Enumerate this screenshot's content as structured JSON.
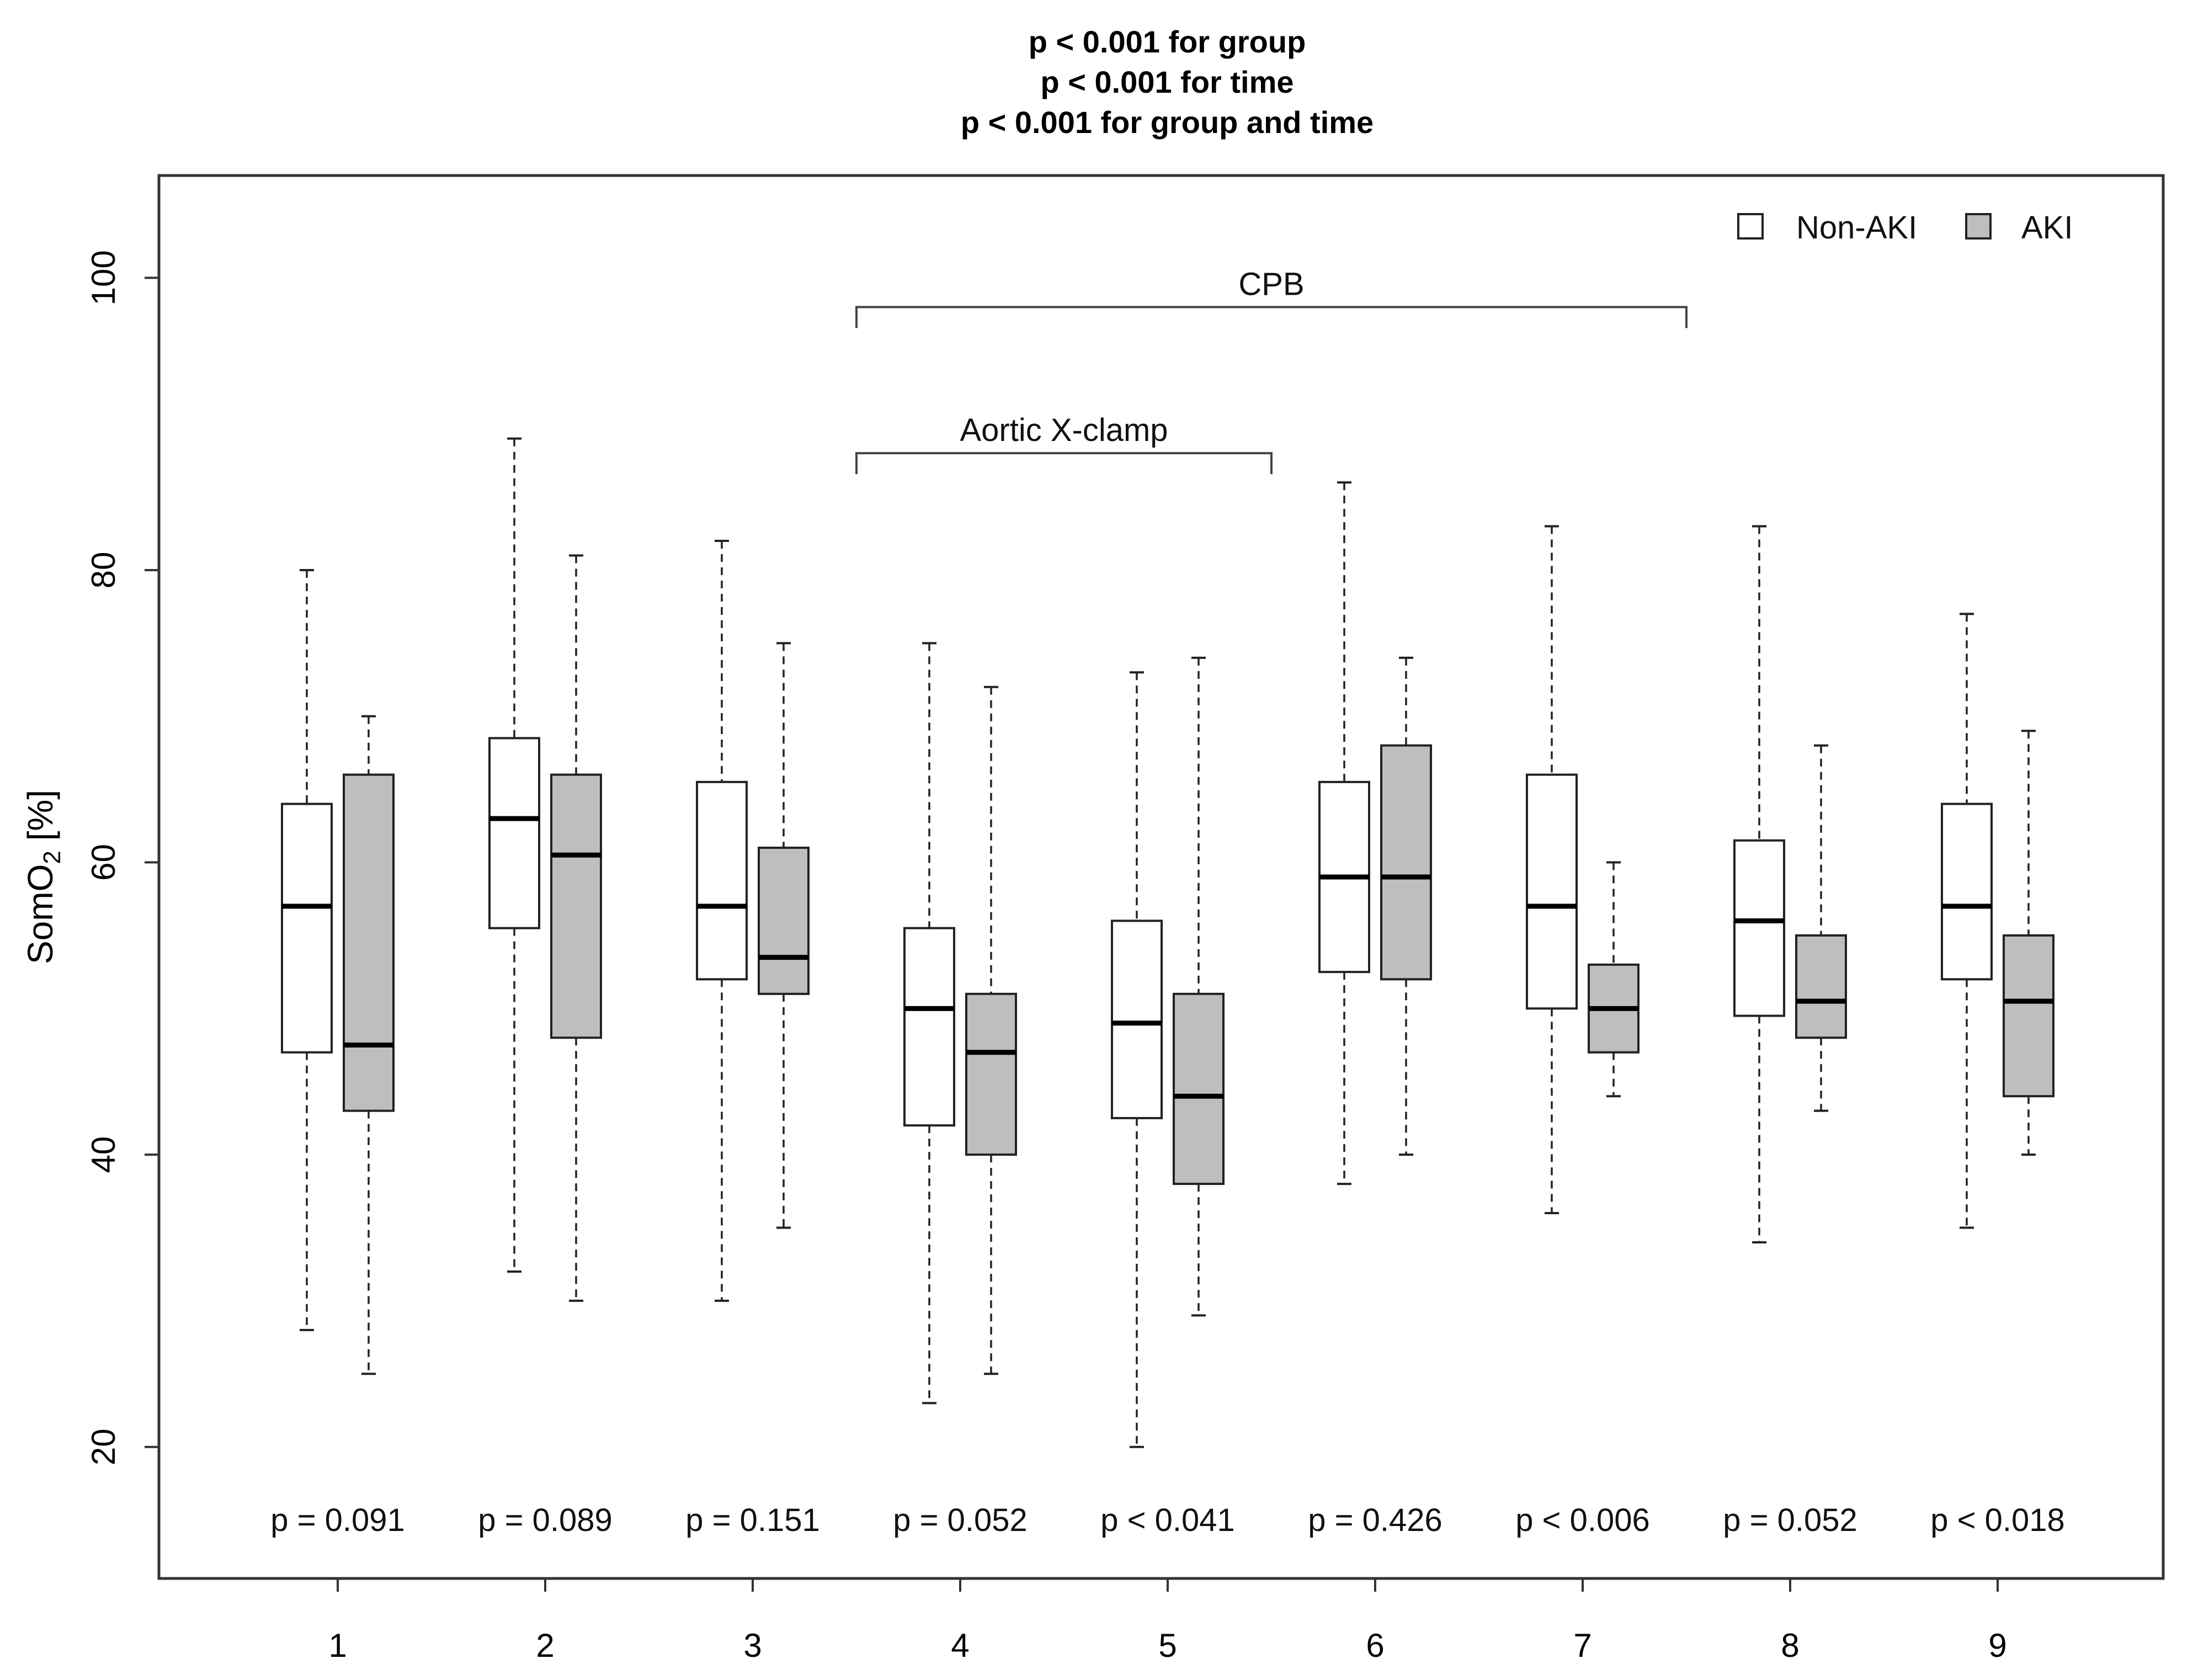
{
  "chart_data": {
    "type": "boxplot",
    "title_lines": [
      "p < 0.001 for group",
      "p < 0.001 for time",
      "p < 0.001 for group and time"
    ],
    "ylabel": "SomO",
    "ylabel_sub": "2",
    "ylabel_unit": " [%]",
    "ylim": [
      11,
      107
    ],
    "yticks": [
      20,
      40,
      60,
      80,
      100
    ],
    "categories": [
      "1",
      "2",
      "3",
      "4",
      "5",
      "6",
      "7",
      "8",
      "9"
    ],
    "legend": [
      {
        "name": "Non-AKI",
        "fill": "#ffffff"
      },
      {
        "name": "AKI",
        "fill": "#bebebe"
      }
    ],
    "series": [
      {
        "name": "Non-AKI",
        "fill": "#ffffff",
        "boxes": [
          {
            "min": 28,
            "q1": 47,
            "median": 57,
            "q3": 64,
            "max": 80
          },
          {
            "min": 32,
            "q1": 55.5,
            "median": 63,
            "q3": 68.5,
            "max": 89
          },
          {
            "min": 30,
            "q1": 52,
            "median": 57,
            "q3": 65.5,
            "max": 82
          },
          {
            "min": 23,
            "q1": 42,
            "median": 50,
            "q3": 55.5,
            "max": 75
          },
          {
            "min": 20,
            "q1": 42.5,
            "median": 49,
            "q3": 56,
            "max": 73
          },
          {
            "min": 38,
            "q1": 52.5,
            "median": 59,
            "q3": 65.5,
            "max": 86
          },
          {
            "min": 36,
            "q1": 50,
            "median": 57,
            "q3": 66,
            "max": 83
          },
          {
            "min": 34,
            "q1": 49.5,
            "median": 56,
            "q3": 61.5,
            "max": 83
          },
          {
            "min": 35,
            "q1": 52,
            "median": 57,
            "q3": 64,
            "max": 77
          }
        ]
      },
      {
        "name": "AKI",
        "fill": "#bebebe",
        "boxes": [
          {
            "min": 25,
            "q1": 43,
            "median": 47.5,
            "q3": 66,
            "max": 70
          },
          {
            "min": 30,
            "q1": 48,
            "median": 60.5,
            "q3": 66,
            "max": 81
          },
          {
            "min": 35,
            "q1": 51,
            "median": 53.5,
            "q3": 61,
            "max": 75
          },
          {
            "min": 25,
            "q1": 40,
            "median": 47,
            "q3": 51,
            "max": 72
          },
          {
            "min": 29,
            "q1": 38,
            "median": 44,
            "q3": 51,
            "max": 74
          },
          {
            "min": 40,
            "q1": 52,
            "median": 59,
            "q3": 68,
            "max": 74
          },
          {
            "min": 44,
            "q1": 47,
            "median": 50,
            "q3": 53,
            "max": 60
          },
          {
            "min": 43,
            "q1": 48,
            "median": 50.5,
            "q3": 55,
            "max": 68
          },
          {
            "min": 40,
            "q1": 44,
            "median": 50.5,
            "q3": 55,
            "max": 69
          }
        ]
      }
    ],
    "pvalues": [
      "p = 0.091",
      "p = 0.089",
      "p = 0.151",
      "p = 0.052",
      "p < 0.041",
      "p = 0.426",
      "p < 0.006",
      "p = 0.052",
      "p < 0.018"
    ],
    "pvalue_y": 15,
    "annotations": [
      {
        "label": "CPB",
        "from": 3.5,
        "to": 7.5,
        "y": 98
      },
      {
        "label": "Aortic X-clamp",
        "from": 3.5,
        "to": 5.5,
        "y": 88
      }
    ]
  }
}
